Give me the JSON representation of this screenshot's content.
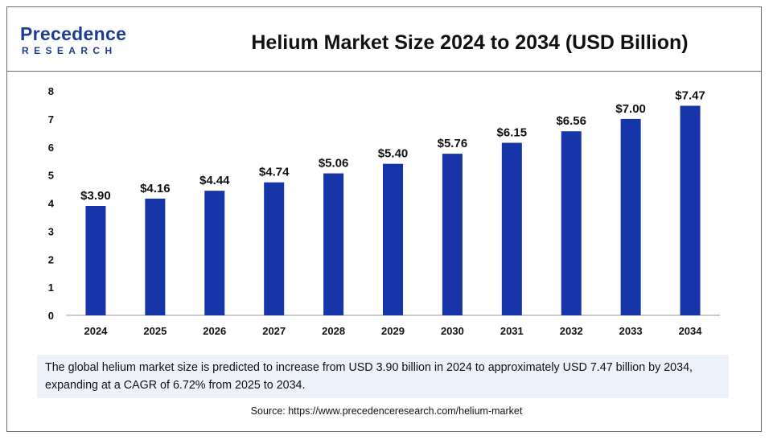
{
  "brand": {
    "logo_word": "recedence",
    "logo_letter": "P",
    "logo_sub": "RESEARCH"
  },
  "chart_data": {
    "type": "bar",
    "title": "Helium Market Size 2024 to 2034 (USD Billion)",
    "categories": [
      "2024",
      "2025",
      "2026",
      "2027",
      "2028",
      "2029",
      "2030",
      "2031",
      "2032",
      "2033",
      "2034"
    ],
    "values": [
      3.9,
      4.16,
      4.44,
      4.74,
      5.06,
      5.4,
      5.76,
      6.15,
      6.56,
      7.0,
      7.47
    ],
    "data_labels": [
      "$3.90",
      "$4.16",
      "$4.44",
      "$4.74",
      "$5.06",
      "$5.40",
      "$5.76",
      "$6.15",
      "$6.56",
      "$7.00",
      "$7.47"
    ],
    "yticks": [
      "0",
      "1",
      "2",
      "3",
      "4",
      "5",
      "6",
      "7",
      "8"
    ],
    "ylim": [
      0,
      8
    ],
    "bar_color": "#1535a8",
    "grid": false,
    "legend": "none"
  },
  "note": "The global helium market size is predicted to increase from USD 3.90 billion in 2024 to approximately USD 7.47 billion by 2034, expanding at a CAGR of 6.72% from 2025 to 2034.",
  "source": "Source: https://www.precedenceresearch.com/helium-market"
}
